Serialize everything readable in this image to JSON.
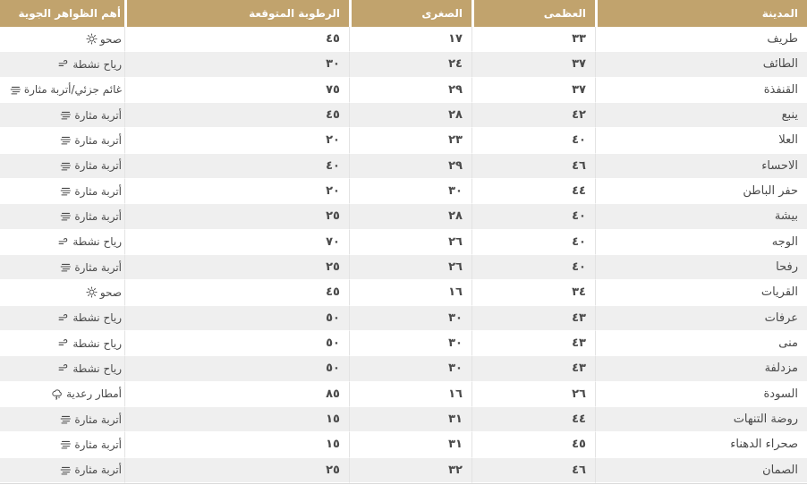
{
  "table": {
    "columns": [
      {
        "key": "city",
        "label": "المدينة"
      },
      {
        "key": "max",
        "label": "العظمى"
      },
      {
        "key": "min",
        "label": "الصغرى"
      },
      {
        "key": "humidity",
        "label": "الرطوبة المتوقعة"
      },
      {
        "key": "phenomena",
        "label": "أهم الظواهر الجوية"
      }
    ],
    "rows": [
      {
        "city": "طريف",
        "max": "٣٣",
        "min": "١٧",
        "humidity": "٤٥",
        "phenomena": "صحو",
        "icon": "sun-icon"
      },
      {
        "city": "الطائف",
        "max": "٣٧",
        "min": "٢٤",
        "humidity": "٣٠",
        "phenomena": "رياح نشطة",
        "icon": "wind-icon"
      },
      {
        "city": "القنفذة",
        "max": "٣٧",
        "min": "٢٩",
        "humidity": "٧٥",
        "phenomena": "غائم جزئي/أتربة مثارة",
        "icon": "dust-icon"
      },
      {
        "city": "ينبع",
        "max": "٤٢",
        "min": "٢٨",
        "humidity": "٤٥",
        "phenomena": "أتربة مثارة",
        "icon": "dust-icon"
      },
      {
        "city": "العلا",
        "max": "٤٠",
        "min": "٢٣",
        "humidity": "٢٠",
        "phenomena": "أتربة مثارة",
        "icon": "dust-icon"
      },
      {
        "city": "الاحساء",
        "max": "٤٦",
        "min": "٢٩",
        "humidity": "٤٠",
        "phenomena": "أتربة مثارة",
        "icon": "dust-icon"
      },
      {
        "city": "حفر الباطن",
        "max": "٤٤",
        "min": "٣٠",
        "humidity": "٢٠",
        "phenomena": "أتربة مثارة",
        "icon": "dust-icon"
      },
      {
        "city": "بيشة",
        "max": "٤٠",
        "min": "٢٨",
        "humidity": "٢٥",
        "phenomena": "أتربة مثارة",
        "icon": "dust-icon"
      },
      {
        "city": "الوجه",
        "max": "٤٠",
        "min": "٢٦",
        "humidity": "٧٠",
        "phenomena": "رياح نشطة",
        "icon": "wind-icon"
      },
      {
        "city": "رفحا",
        "max": "٤٠",
        "min": "٢٦",
        "humidity": "٢٥",
        "phenomena": "أتربة مثارة",
        "icon": "dust-icon"
      },
      {
        "city": "القريات",
        "max": "٣٤",
        "min": "١٦",
        "humidity": "٤٥",
        "phenomena": "صحو",
        "icon": "sun-icon"
      },
      {
        "city": "عرفات",
        "max": "٤٣",
        "min": "٣٠",
        "humidity": "٥٠",
        "phenomena": "رياح نشطة",
        "icon": "wind-icon"
      },
      {
        "city": "منى",
        "max": "٤٣",
        "min": "٣٠",
        "humidity": "٥٠",
        "phenomena": "رياح نشطة",
        "icon": "wind-icon"
      },
      {
        "city": "مزدلفة",
        "max": "٤٣",
        "min": "٣٠",
        "humidity": "٥٠",
        "phenomena": "رياح نشطة",
        "icon": "wind-icon"
      },
      {
        "city": "السودة",
        "max": "٢٦",
        "min": "١٦",
        "humidity": "٨٥",
        "phenomena": "أمطار رعدية",
        "icon": "storm-icon"
      },
      {
        "city": "روضة التنهات",
        "max": "٤٤",
        "min": "٣١",
        "humidity": "١٥",
        "phenomena": "أتربة مثارة",
        "icon": "dust-icon"
      },
      {
        "city": "صحراء الدهناء",
        "max": "٤٥",
        "min": "٣١",
        "humidity": "١٥",
        "phenomena": "أتربة مثارة",
        "icon": "dust-icon"
      },
      {
        "city": "الصمان",
        "max": "٤٦",
        "min": "٣٢",
        "humidity": "٢٥",
        "phenomena": "أتربة مثارة",
        "icon": "dust-icon"
      }
    ]
  },
  "colors": {
    "header_bg": "#c1a36d",
    "header_text": "#ffffff",
    "row_alt_bg": "#efefef",
    "row_bg": "#ffffff",
    "text": "#4a4a4a",
    "column_divider": "#e3e3e3"
  }
}
